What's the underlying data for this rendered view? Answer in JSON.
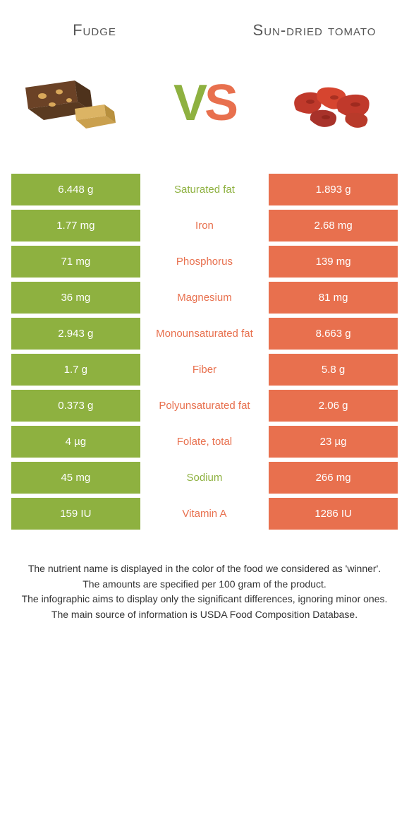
{
  "colors": {
    "left": "#8eb140",
    "right": "#e8704e",
    "vs_v": "#8eb140",
    "vs_s": "#e8704e",
    "title_text": "#555555",
    "footnote_text": "#333333",
    "background": "#ffffff"
  },
  "titles": {
    "left": "Fudge",
    "right": "Sun-dried tomato"
  },
  "vs": {
    "v": "V",
    "s": "S"
  },
  "rows": [
    {
      "left": "6.448 g",
      "label": "Saturated fat",
      "right": "1.893 g",
      "winner": "left"
    },
    {
      "left": "1.77 mg",
      "label": "Iron",
      "right": "2.68 mg",
      "winner": "right"
    },
    {
      "left": "71 mg",
      "label": "Phosphorus",
      "right": "139 mg",
      "winner": "right"
    },
    {
      "left": "36 mg",
      "label": "Magnesium",
      "right": "81 mg",
      "winner": "right"
    },
    {
      "left": "2.943 g",
      "label": "Monounsaturated fat",
      "right": "8.663 g",
      "winner": "right"
    },
    {
      "left": "1.7 g",
      "label": "Fiber",
      "right": "5.8 g",
      "winner": "right"
    },
    {
      "left": "0.373 g",
      "label": "Polyunsaturated fat",
      "right": "2.06 g",
      "winner": "right"
    },
    {
      "left": "4 µg",
      "label": "Folate, total",
      "right": "23 µg",
      "winner": "right"
    },
    {
      "left": "45 mg",
      "label": "Sodium",
      "right": "266 mg",
      "winner": "left"
    },
    {
      "left": "159 IU",
      "label": "Vitamin A",
      "right": "1286 IU",
      "winner": "right"
    }
  ],
  "footnotes": [
    "The nutrient name is displayed in the color of the food we considered as 'winner'.",
    "The amounts are specified per 100 gram of the product.",
    "The infographic aims to display only the significant differences, ignoring minor ones.",
    "The main source of information is USDA Food Composition Database."
  ]
}
